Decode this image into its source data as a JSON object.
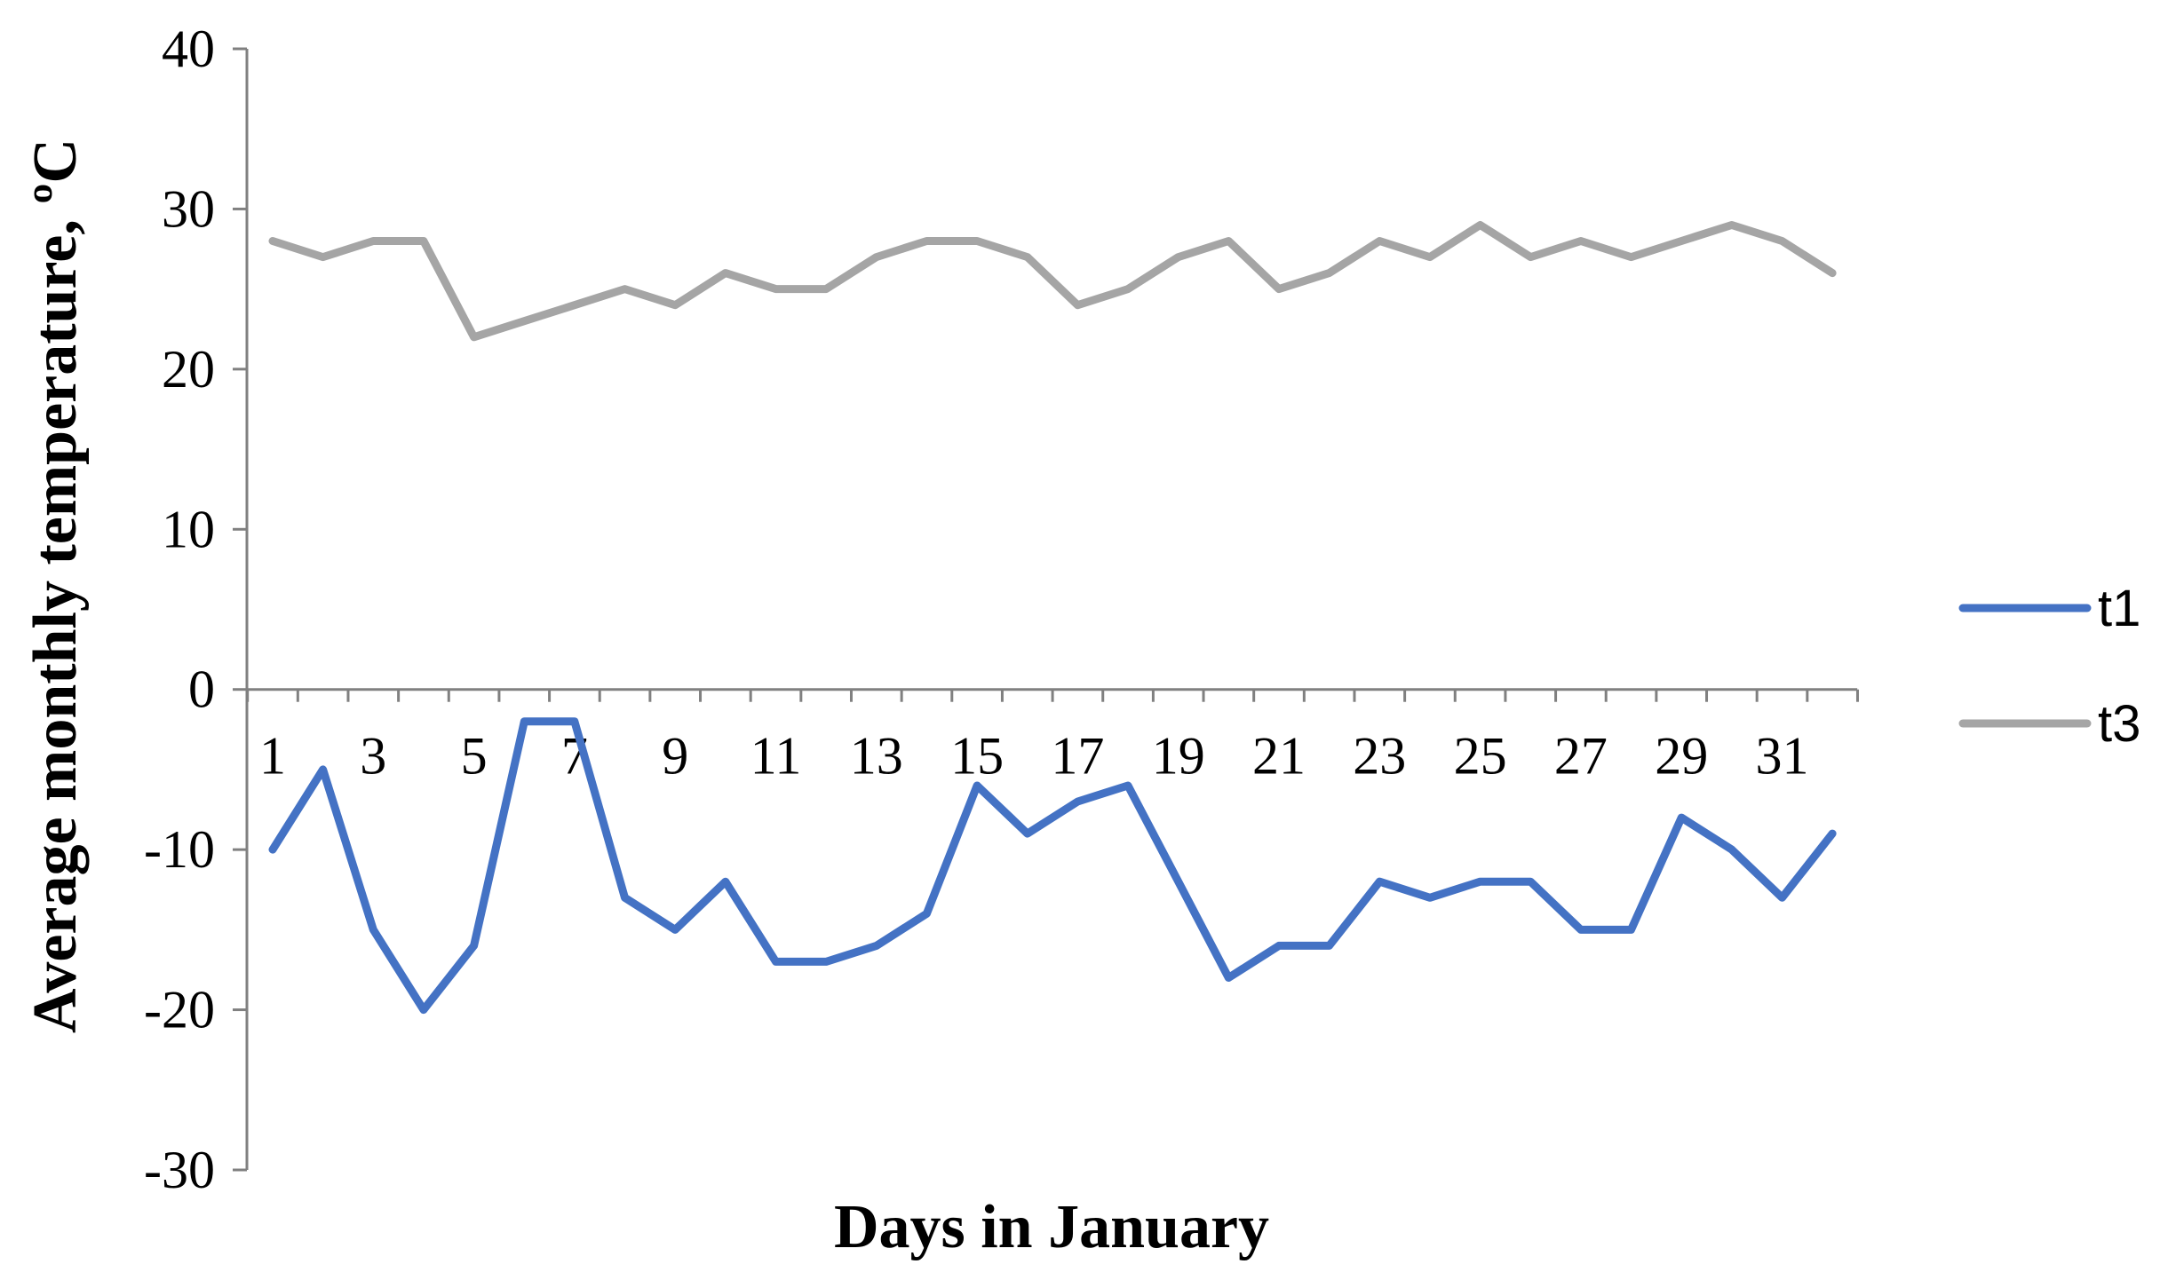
{
  "chart_data": {
    "type": "line",
    "xlabel": "Days in January",
    "ylabel": "Average monthly temperature, ºC",
    "ylim": [
      -30,
      40
    ],
    "yticks": [
      -30,
      -20,
      -10,
      0,
      10,
      20,
      30,
      40
    ],
    "x": [
      1,
      2,
      3,
      4,
      5,
      6,
      7,
      8,
      9,
      10,
      11,
      12,
      13,
      14,
      15,
      16,
      17,
      18,
      19,
      20,
      21,
      22,
      23,
      24,
      25,
      26,
      27,
      28,
      29,
      30,
      31,
      32
    ],
    "xtick_labels": [
      "1",
      "3",
      "5",
      "7",
      "9",
      "11",
      "13",
      "15",
      "17",
      "19",
      "21",
      "23",
      "25",
      "27",
      "29",
      "31"
    ],
    "grid": false,
    "legend_position": "right",
    "series": [
      {
        "name": "t1",
        "color": "#4472C4",
        "values": [
          -10,
          -5,
          -15,
          -20,
          -16,
          -2,
          -2,
          -13,
          -15,
          -12,
          -17,
          -17,
          -16,
          -14,
          -6,
          -9,
          -7,
          -6,
          -12,
          -18,
          -16,
          -16,
          -12,
          -13,
          -12,
          -12,
          -15,
          -15,
          -8,
          -10,
          -13,
          -9
        ]
      },
      {
        "name": "t3",
        "color": "#A5A5A5",
        "values": [
          28,
          27,
          28,
          28,
          22,
          23,
          24,
          25,
          24,
          26,
          25,
          25,
          27,
          28,
          28,
          27,
          24,
          25,
          27,
          28,
          25,
          26,
          28,
          27,
          29,
          27,
          28,
          27,
          28,
          29,
          28,
          26
        ]
      }
    ]
  }
}
